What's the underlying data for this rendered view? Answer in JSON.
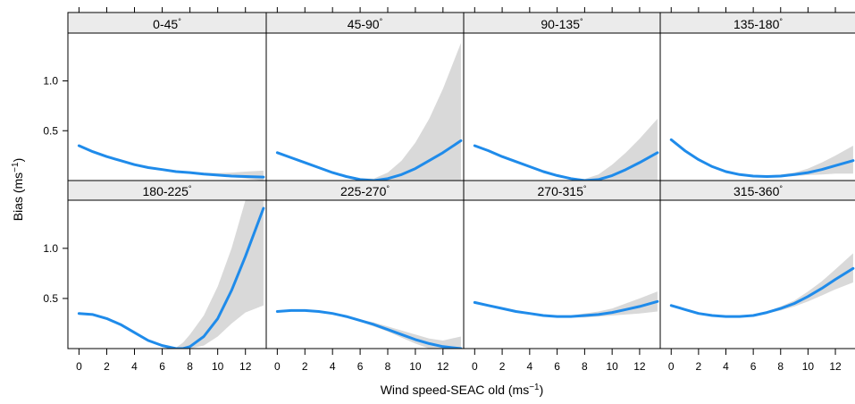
{
  "chart_data": {
    "type": "line",
    "layout": "lattice 4x2 panels with 95% confidence bands",
    "xlabel": "Wind speed-SEAC old",
    "xlabel_unit_base": "ms",
    "xlabel_unit_exp": "−1",
    "ylabel": "Bias",
    "ylabel_unit_base": "ms",
    "ylabel_unit_exp": "−1",
    "xlim": [
      -0.8,
      13.5
    ],
    "ylim": [
      0,
      1.48
    ],
    "x_ticks": [
      0,
      2,
      4,
      6,
      8,
      10,
      12
    ],
    "y_ticks": [
      0.5,
      1.0
    ],
    "y_tick_labels": [
      "0.5",
      "1.0"
    ],
    "line_color": "#1f8bea",
    "band_color": "#d9d9d9",
    "strip_color": "#ebebeb",
    "panels": [
      {
        "label": "0-45",
        "label_sup": "°",
        "x": [
          0,
          1,
          2,
          3,
          4,
          5,
          6,
          7,
          8,
          9,
          10,
          11,
          12,
          13.3
        ],
        "fit": [
          0.35,
          0.29,
          0.24,
          0.2,
          0.16,
          0.13,
          0.11,
          0.09,
          0.08,
          0.065,
          0.055,
          0.045,
          0.04,
          0.035
        ],
        "lower": [
          0.34,
          0.28,
          0.23,
          0.19,
          0.15,
          0.125,
          0.1,
          0.085,
          0.07,
          0.055,
          0.045,
          0.035,
          0.02,
          0.0
        ],
        "upper": [
          0.36,
          0.3,
          0.25,
          0.21,
          0.17,
          0.14,
          0.12,
          0.1,
          0.09,
          0.08,
          0.075,
          0.08,
          0.09,
          0.1
        ]
      },
      {
        "label": "45-90",
        "label_sup": "°",
        "x": [
          0,
          1,
          2,
          3,
          4,
          5,
          6,
          7,
          8,
          9,
          10,
          11,
          12,
          13.3
        ],
        "fit": [
          0.28,
          0.23,
          0.18,
          0.13,
          0.08,
          0.04,
          0.01,
          0.0,
          0.02,
          0.06,
          0.12,
          0.2,
          0.28,
          0.4
        ],
        "lower": [
          0.27,
          0.22,
          0.17,
          0.12,
          0.07,
          0.03,
          0.0,
          0.0,
          0.0,
          0.0,
          0.0,
          0.0,
          0.0,
          0.0
        ],
        "upper": [
          0.29,
          0.24,
          0.19,
          0.14,
          0.09,
          0.05,
          0.025,
          0.02,
          0.08,
          0.2,
          0.38,
          0.62,
          0.92,
          1.38
        ]
      },
      {
        "label": "90-135",
        "label_sup": "°",
        "x": [
          0,
          1,
          2,
          3,
          4,
          5,
          6,
          7,
          8,
          9,
          10,
          11,
          12,
          13.3
        ],
        "fit": [
          0.35,
          0.3,
          0.24,
          0.19,
          0.14,
          0.09,
          0.05,
          0.02,
          0.0,
          0.01,
          0.05,
          0.11,
          0.18,
          0.28
        ],
        "lower": [
          0.34,
          0.29,
          0.23,
          0.18,
          0.13,
          0.08,
          0.04,
          0.01,
          0.0,
          0.0,
          0.0,
          0.0,
          0.0,
          0.0
        ],
        "upper": [
          0.36,
          0.31,
          0.25,
          0.2,
          0.15,
          0.1,
          0.06,
          0.03,
          0.015,
          0.06,
          0.16,
          0.28,
          0.42,
          0.62
        ]
      },
      {
        "label": "135-180",
        "label_sup": "°",
        "x": [
          0,
          1,
          2,
          3,
          4,
          5,
          6,
          7,
          8,
          9,
          10,
          11,
          12,
          13.3
        ],
        "fit": [
          0.41,
          0.3,
          0.21,
          0.14,
          0.09,
          0.06,
          0.045,
          0.04,
          0.045,
          0.06,
          0.08,
          0.11,
          0.15,
          0.2
        ],
        "lower": [
          0.4,
          0.29,
          0.2,
          0.13,
          0.08,
          0.05,
          0.035,
          0.03,
          0.035,
          0.045,
          0.055,
          0.06,
          0.07,
          0.07
        ],
        "upper": [
          0.42,
          0.31,
          0.22,
          0.15,
          0.1,
          0.07,
          0.055,
          0.05,
          0.06,
          0.08,
          0.12,
          0.18,
          0.25,
          0.35
        ]
      },
      {
        "label": "180-225",
        "label_sup": "°",
        "x": [
          0,
          1,
          2,
          3,
          4,
          5,
          6,
          7,
          7.5,
          8,
          9,
          10,
          11,
          12,
          13.3
        ],
        "fit": [
          0.35,
          0.34,
          0.3,
          0.24,
          0.16,
          0.08,
          0.03,
          0.0,
          0.0,
          0.02,
          0.12,
          0.3,
          0.58,
          0.92,
          1.4
        ],
        "lower": [
          0.34,
          0.33,
          0.29,
          0.23,
          0.15,
          0.07,
          0.02,
          0.0,
          0.0,
          0.0,
          0.03,
          0.12,
          0.25,
          0.36,
          0.43
        ],
        "upper": [
          0.36,
          0.35,
          0.31,
          0.25,
          0.17,
          0.09,
          0.04,
          0.01,
          0.06,
          0.14,
          0.33,
          0.62,
          1.0,
          1.48,
          1.48
        ]
      },
      {
        "label": "225-270",
        "label_sup": "°",
        "x": [
          0,
          1,
          2,
          3,
          4,
          5,
          6,
          7,
          8,
          9,
          10,
          11,
          12,
          13.3
        ],
        "fit": [
          0.37,
          0.38,
          0.38,
          0.37,
          0.35,
          0.32,
          0.28,
          0.24,
          0.19,
          0.14,
          0.09,
          0.05,
          0.02,
          0.0
        ],
        "lower": [
          0.36,
          0.37,
          0.37,
          0.36,
          0.34,
          0.31,
          0.27,
          0.22,
          0.17,
          0.11,
          0.05,
          0.0,
          0.0,
          0.0
        ],
        "upper": [
          0.38,
          0.39,
          0.39,
          0.38,
          0.36,
          0.33,
          0.29,
          0.26,
          0.22,
          0.18,
          0.14,
          0.1,
          0.08,
          0.12
        ]
      },
      {
        "label": "270-315",
        "label_sup": "°",
        "x": [
          0,
          1,
          2,
          3,
          4,
          5,
          6,
          7,
          8,
          9,
          10,
          11,
          12,
          13.3
        ],
        "fit": [
          0.46,
          0.43,
          0.4,
          0.37,
          0.35,
          0.33,
          0.32,
          0.32,
          0.33,
          0.34,
          0.36,
          0.39,
          0.42,
          0.47
        ],
        "lower": [
          0.45,
          0.42,
          0.39,
          0.36,
          0.34,
          0.32,
          0.31,
          0.31,
          0.31,
          0.32,
          0.33,
          0.34,
          0.35,
          0.37
        ],
        "upper": [
          0.47,
          0.44,
          0.41,
          0.38,
          0.36,
          0.34,
          0.33,
          0.33,
          0.35,
          0.37,
          0.4,
          0.45,
          0.5,
          0.57
        ]
      },
      {
        "label": "315-360",
        "label_sup": "°",
        "x": [
          0,
          1,
          2,
          3,
          4,
          5,
          6,
          7,
          8,
          9,
          10,
          11,
          12,
          13.3
        ],
        "fit": [
          0.43,
          0.39,
          0.35,
          0.33,
          0.32,
          0.32,
          0.33,
          0.36,
          0.4,
          0.45,
          0.52,
          0.6,
          0.69,
          0.8
        ],
        "lower": [
          0.42,
          0.38,
          0.34,
          0.32,
          0.31,
          0.31,
          0.32,
          0.35,
          0.38,
          0.42,
          0.47,
          0.53,
          0.59,
          0.66
        ],
        "upper": [
          0.44,
          0.4,
          0.36,
          0.34,
          0.33,
          0.33,
          0.34,
          0.37,
          0.42,
          0.48,
          0.57,
          0.67,
          0.79,
          0.95
        ]
      }
    ]
  }
}
